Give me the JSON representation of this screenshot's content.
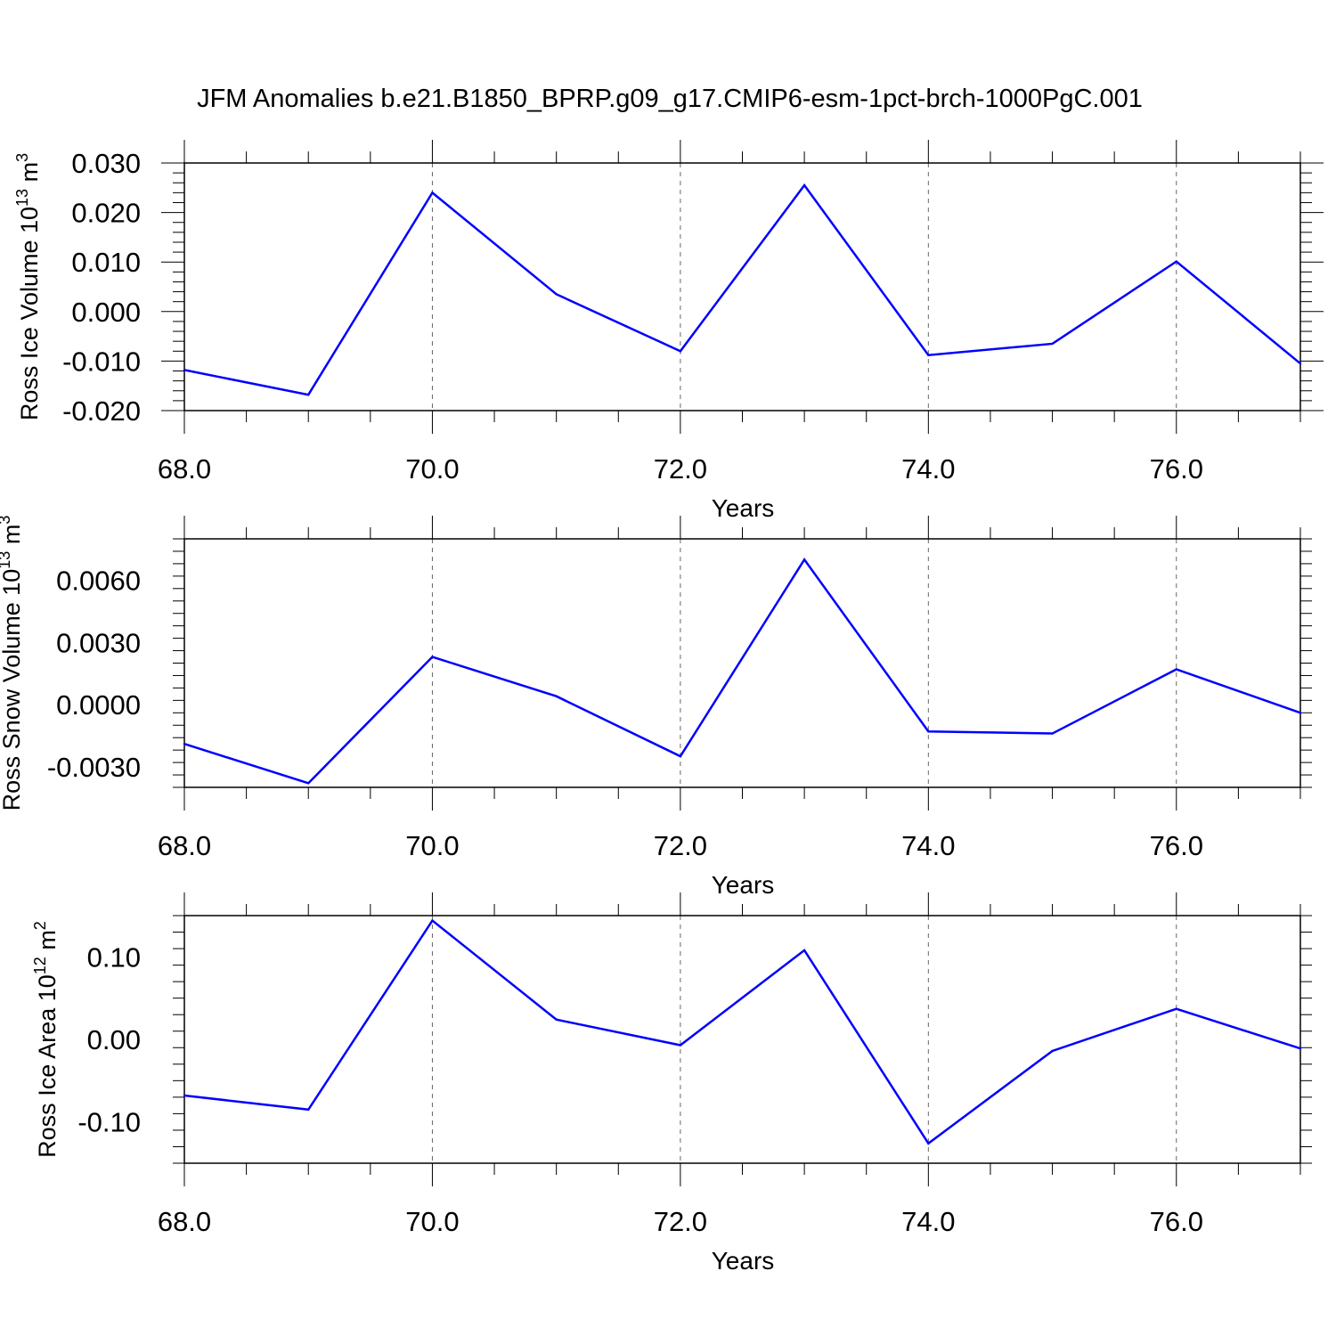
{
  "title": "JFM Anomalies b.e21.B1850_BPRP.g09_g17.CMIP6-esm-1pct-brch-1000PgC.001",
  "colors": {
    "series": "#0000ff",
    "axis": "#000000",
    "grid": "#666666"
  },
  "chart_data": [
    {
      "type": "line",
      "ylabel": {
        "text": "Ross Ice Volume 10",
        "exp": "13",
        "unit": " m",
        "unit_exp": "3"
      },
      "xlabel": "Years",
      "xlim": [
        68,
        77
      ],
      "ylim": [
        -0.02,
        0.03
      ],
      "xticks": [
        68,
        70,
        72,
        74,
        76
      ],
      "xtick_labels": [
        "68.0",
        "70.0",
        "72.0",
        "74.0",
        "76.0"
      ],
      "yticks": [
        -0.02,
        -0.01,
        0.0,
        0.01,
        0.02,
        0.03
      ],
      "ytick_labels": [
        "-0.020",
        "-0.010",
        "0.000",
        "0.010",
        "0.020",
        "0.030"
      ],
      "x": [
        68,
        69,
        70,
        71,
        72,
        73,
        74,
        75,
        76,
        77
      ],
      "y": [
        -0.0118,
        -0.0168,
        0.024,
        0.0035,
        -0.008,
        0.0255,
        -0.0088,
        -0.0065,
        0.0101,
        -0.0105
      ],
      "grid": "vertical dashed at major x ticks"
    },
    {
      "type": "line",
      "ylabel": {
        "text": "Ross Snow Volume 10",
        "exp": "13",
        "unit": " m",
        "unit_exp": "3"
      },
      "xlabel": "Years",
      "xlim": [
        68,
        77
      ],
      "ylim": [
        -0.004,
        0.008
      ],
      "xticks": [
        68,
        70,
        72,
        74,
        76
      ],
      "xtick_labels": [
        "68.0",
        "70.0",
        "72.0",
        "74.0",
        "76.0"
      ],
      "yticks": [
        -0.003,
        0.0,
        0.003,
        0.006
      ],
      "ytick_labels": [
        "-0.0030",
        "0.0000",
        "0.0030",
        "0.0060"
      ],
      "x": [
        68,
        69,
        70,
        71,
        72,
        73,
        74,
        75,
        76,
        77
      ],
      "y": [
        -0.0019,
        -0.0038,
        0.0023,
        0.0004,
        -0.0025,
        0.007,
        -0.0013,
        -0.0014,
        0.0017,
        -0.0004
      ],
      "grid": "vertical dashed at major x ticks"
    },
    {
      "type": "line",
      "ylabel": {
        "text": "Ross Ice Area 10",
        "exp": "12",
        "unit": " m",
        "unit_exp": "2"
      },
      "xlabel": "Years",
      "xlim": [
        68,
        77
      ],
      "ylim": [
        -0.15,
        0.15
      ],
      "xticks": [
        68,
        70,
        72,
        74,
        76
      ],
      "xtick_labels": [
        "68.0",
        "70.0",
        "72.0",
        "74.0",
        "76.0"
      ],
      "yticks": [
        -0.1,
        0.0,
        0.1
      ],
      "ytick_labels": [
        "-0.10",
        "0.00",
        "0.10"
      ],
      "x": [
        68,
        69,
        70,
        71,
        72,
        73,
        74,
        75,
        76,
        77
      ],
      "y": [
        -0.068,
        -0.085,
        0.144,
        0.024,
        -0.007,
        0.108,
        -0.126,
        -0.014,
        0.037,
        -0.011
      ],
      "grid": "vertical dashed at major x ticks"
    }
  ]
}
